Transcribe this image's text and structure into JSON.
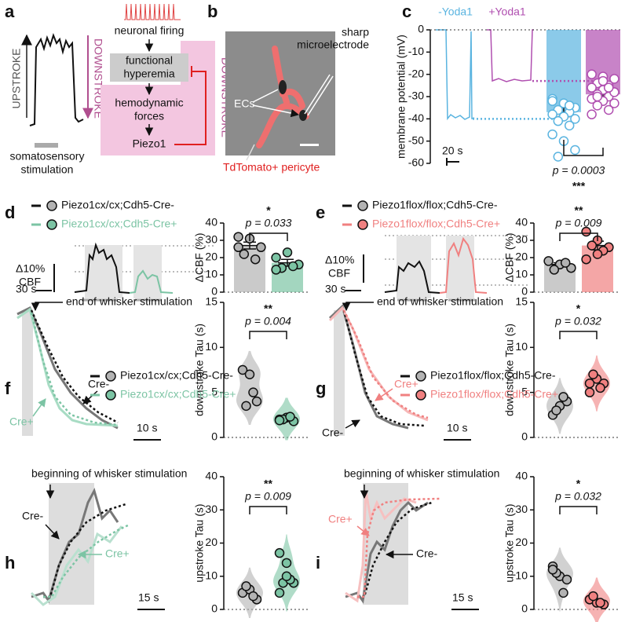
{
  "panel_labels": [
    "a",
    "b",
    "c",
    "d",
    "e",
    "f",
    "g",
    "h",
    "i"
  ],
  "panel_a": {
    "upstroke": "UPSTROKE",
    "downstroke": "DOWNSTROKE",
    "stimulation": [
      "somatosensory",
      "stimulation"
    ],
    "flow": [
      "neuronal firing",
      [
        "functional",
        "hyperemia"
      ],
      [
        "hemodynamic",
        "forces"
      ],
      "Piezo1"
    ],
    "feedback": "DOWNSTROKE"
  },
  "panel_b": {
    "electrode": [
      "sharp",
      "microelectrode"
    ],
    "ecs": "ECs",
    "pericyte": "TdTomato+ pericyte"
  },
  "traces": {
    "cbf_scale": [
      "Δ10%",
      "CBF"
    ],
    "time_scale_de": "30 s",
    "end_stim": "end of whisker stimulation",
    "begin_stim": "beginning of whisker stimulation",
    "cre_minus": "Cre-",
    "cre_plus": "Cre+",
    "time_scale_fg": "10 s",
    "time_scale_hi": "15 s"
  },
  "chart_data": [
    {
      "type": "bar",
      "ylabel": "membrane potential (mV)",
      "ylim": [
        -60,
        0
      ],
      "yticks": [
        0,
        -10,
        -20,
        -30,
        -40,
        -50,
        -60
      ],
      "series": [
        {
          "name": "-Yoda1",
          "color": "#5ab4e0",
          "values": [
            -37
          ],
          "errors": [
            2
          ],
          "trace_level": -40,
          "points": [
            -31,
            -33,
            -35,
            -36,
            -37,
            -38,
            -39,
            -40,
            -41,
            -43,
            -47,
            -50,
            -54,
            -57,
            -34,
            -32
          ]
        },
        {
          "name": "+Yoda1",
          "color": "#b04fb0",
          "values": [
            -29
          ],
          "errors": [
            1.5
          ],
          "trace_level": -23,
          "points": [
            -20,
            -21,
            -22,
            -24,
            -25,
            -26,
            -27,
            -28,
            -29,
            -30,
            -31,
            -32,
            -33,
            -34,
            -36,
            -38,
            -23,
            -28,
            -30,
            -26
          ]
        }
      ],
      "p_label": "p = 0.0003",
      "significance": "***",
      "time_scale": "20 s"
    },
    {
      "type": "bar",
      "ylabel": "ΔCBF (%)",
      "ylim": [
        0,
        40
      ],
      "yticks": [
        0,
        10,
        20,
        30,
        40
      ],
      "series": [
        {
          "name": "Piezo1cx/cx;Cdh5-Cre-",
          "color": "#b3b3b3",
          "values": [
            27
          ],
          "errors": [
            2
          ],
          "points": [
            32,
            31,
            26,
            22,
            19,
            26
          ]
        },
        {
          "name": "Piezo1cx/cx;Cdh5-Cre+",
          "color": "#7cc4a4",
          "values": [
            17
          ],
          "errors": [
            2
          ],
          "points": [
            20,
            23,
            16,
            14,
            15,
            13
          ]
        }
      ],
      "p_label": "p = 0.033",
      "significance": "*"
    },
    {
      "type": "bar",
      "ylabel": "ΔCBF (%)",
      "ylim": [
        0,
        40
      ],
      "yticks": [
        0,
        10,
        20,
        30,
        40
      ],
      "series": [
        {
          "name": "Piezo1flox/flox;Cdh5-Cre-",
          "color": "#b3b3b3",
          "values": [
            16
          ],
          "errors": [
            1
          ],
          "points": [
            18,
            16,
            14,
            13,
            17
          ]
        },
        {
          "name": "Piezo1flox/flox;Cdh5-Cre+",
          "color": "#f08080",
          "values": [
            27
          ],
          "errors": [
            2.5
          ],
          "points": [
            35,
            30,
            26,
            27,
            24,
            19,
            22
          ]
        }
      ],
      "p_label": "p = 0.009",
      "significance": "**"
    },
    {
      "type": "violin",
      "ylabel": "downstroke Tau (s)",
      "ylim": [
        0,
        15
      ],
      "yticks": [
        0,
        5,
        10,
        15
      ],
      "series": [
        {
          "name": "Piezo1cx/cx;Cdh5-Cre-",
          "color": "#b3b3b3",
          "points": [
            7.5,
            7,
            4,
            3.5,
            5
          ]
        },
        {
          "name": "Piezo1cx/cx;Cdh5-Cre+",
          "color": "#7cc4a4",
          "points": [
            2,
            2.2,
            1.8,
            2,
            2.3,
            1.9
          ]
        }
      ],
      "p_label": "p = 0.004",
      "significance": "**"
    },
    {
      "type": "violin",
      "ylabel": "downstroke Tau (s)",
      "ylim": [
        0,
        15
      ],
      "yticks": [
        0,
        5,
        10,
        15
      ],
      "series": [
        {
          "name": "Piezo1flox/flox;Cdh5-Cre-",
          "color": "#b3b3b3",
          "points": [
            2.5,
            3.5,
            4,
            3,
            4.5
          ]
        },
        {
          "name": "Piezo1flox/flox;Cdh5-Cre+",
          "color": "#f08080",
          "points": [
            5,
            6.5,
            6,
            7,
            5.5,
            6
          ]
        }
      ],
      "p_label": "p = 0.032",
      "significance": "*"
    },
    {
      "type": "violin",
      "ylabel": "upstroke Tau (s)",
      "ylim": [
        0,
        40
      ],
      "yticks": [
        0,
        10,
        20,
        30,
        40
      ],
      "series": [
        {
          "color": "#b3b3b3",
          "points": [
            5,
            6,
            3,
            7,
            4
          ]
        },
        {
          "color": "#7cc4a4",
          "points": [
            17,
            14,
            8,
            8,
            9,
            5,
            10
          ]
        }
      ],
      "p_label": "p = 0.009",
      "significance": "**"
    },
    {
      "type": "violin",
      "ylabel": "upstroke Tau (s)",
      "ylim": [
        0,
        40
      ],
      "yticks": [
        0,
        10,
        20,
        30,
        40
      ],
      "series": [
        {
          "color": "#b3b3b3",
          "points": [
            13,
            10,
            9,
            11,
            5,
            12
          ]
        },
        {
          "color": "#f08080",
          "points": [
            3,
            2,
            1.5,
            4,
            2
          ]
        }
      ],
      "p_label": "p = 0.032",
      "significance": "*"
    }
  ]
}
